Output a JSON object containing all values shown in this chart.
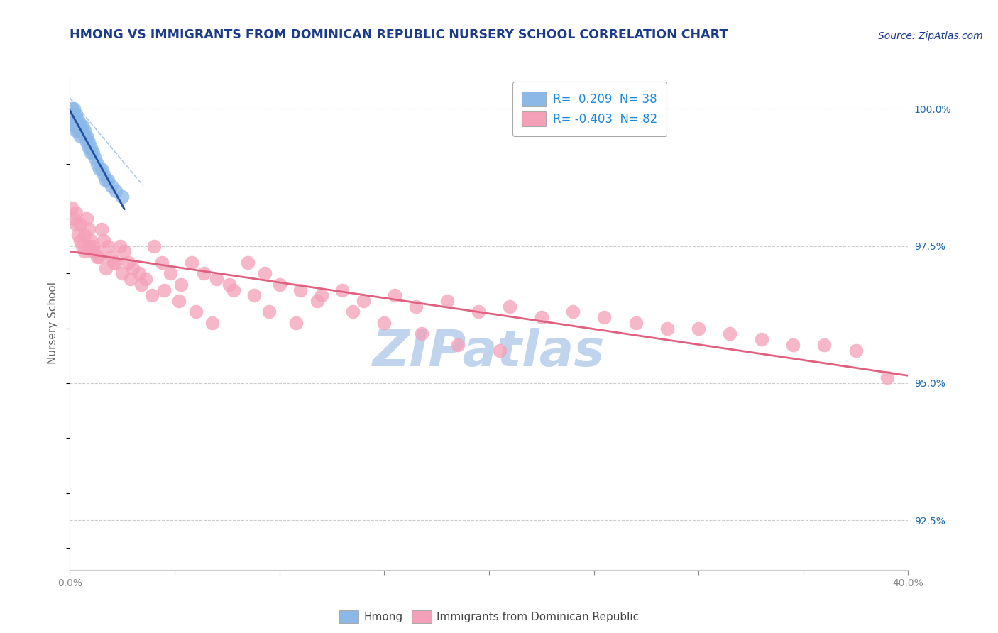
{
  "title": "HMONG VS IMMIGRANTS FROM DOMINICAN REPUBLIC NURSERY SCHOOL CORRELATION CHART",
  "source": "Source: ZipAtlas.com",
  "ylabel": "Nursery School",
  "xmin": 0.0,
  "xmax": 0.4,
  "ymin": 0.916,
  "ymax": 1.006,
  "yticks": [
    0.925,
    0.95,
    0.975,
    1.0
  ],
  "ytick_labels": [
    "92.5%",
    "95.0%",
    "97.5%",
    "100.0%"
  ],
  "xtick_positions": [
    0.0,
    0.4
  ],
  "xtick_labels": [
    "0.0%",
    "40.0%"
  ],
  "hmong_R": 0.209,
  "hmong_N": 38,
  "dr_R": -0.403,
  "dr_N": 82,
  "hmong_color": "#8cb8e8",
  "dr_color": "#f4a0b8",
  "hmong_line_color": "#2050a0",
  "hmong_line_dash_color": "#8ab0d8",
  "dr_line_color": "#e06080",
  "title_color": "#1a3a8a",
  "source_color": "#1a3a8a",
  "axis_label_color": "#666666",
  "tick_color": "#888888",
  "right_tick_color": "#1a6ab0",
  "legend_text_color": "#1a88dd",
  "watermark_color": "#c0d4ee",
  "hmong_x": [
    0.001,
    0.001,
    0.001,
    0.002,
    0.002,
    0.002,
    0.002,
    0.003,
    0.003,
    0.003,
    0.003,
    0.004,
    0.004,
    0.004,
    0.005,
    0.005,
    0.005,
    0.006,
    0.006,
    0.007,
    0.007,
    0.008,
    0.008,
    0.009,
    0.009,
    0.01,
    0.01,
    0.011,
    0.012,
    0.013,
    0.014,
    0.015,
    0.016,
    0.017,
    0.018,
    0.02,
    0.022,
    0.025
  ],
  "hmong_y": [
    1.0,
    0.999,
    0.998,
    1.0,
    0.999,
    0.998,
    0.997,
    0.999,
    0.998,
    0.997,
    0.996,
    0.998,
    0.997,
    0.996,
    0.997,
    0.996,
    0.995,
    0.997,
    0.996,
    0.996,
    0.995,
    0.995,
    0.994,
    0.994,
    0.993,
    0.993,
    0.992,
    0.992,
    0.991,
    0.99,
    0.989,
    0.989,
    0.988,
    0.987,
    0.987,
    0.986,
    0.985,
    0.984
  ],
  "dr_x": [
    0.001,
    0.002,
    0.003,
    0.004,
    0.005,
    0.006,
    0.007,
    0.008,
    0.009,
    0.01,
    0.011,
    0.012,
    0.013,
    0.015,
    0.016,
    0.018,
    0.02,
    0.022,
    0.024,
    0.026,
    0.028,
    0.03,
    0.033,
    0.036,
    0.04,
    0.044,
    0.048,
    0.053,
    0.058,
    0.064,
    0.07,
    0.078,
    0.085,
    0.093,
    0.1,
    0.11,
    0.12,
    0.13,
    0.14,
    0.155,
    0.165,
    0.18,
    0.195,
    0.21,
    0.225,
    0.24,
    0.255,
    0.27,
    0.285,
    0.3,
    0.315,
    0.33,
    0.345,
    0.36,
    0.375,
    0.39,
    0.003,
    0.005,
    0.007,
    0.009,
    0.011,
    0.014,
    0.017,
    0.021,
    0.025,
    0.029,
    0.034,
    0.039,
    0.045,
    0.052,
    0.06,
    0.068,
    0.076,
    0.088,
    0.095,
    0.108,
    0.118,
    0.135,
    0.15,
    0.168,
    0.185,
    0.205
  ],
  "dr_y": [
    0.982,
    0.98,
    0.979,
    0.977,
    0.976,
    0.975,
    0.974,
    0.98,
    0.978,
    0.976,
    0.975,
    0.974,
    0.973,
    0.978,
    0.976,
    0.975,
    0.973,
    0.972,
    0.975,
    0.974,
    0.972,
    0.971,
    0.97,
    0.969,
    0.975,
    0.972,
    0.97,
    0.968,
    0.972,
    0.97,
    0.969,
    0.967,
    0.972,
    0.97,
    0.968,
    0.967,
    0.966,
    0.967,
    0.965,
    0.966,
    0.964,
    0.965,
    0.963,
    0.964,
    0.962,
    0.963,
    0.962,
    0.961,
    0.96,
    0.96,
    0.959,
    0.958,
    0.957,
    0.957,
    0.956,
    0.951,
    0.981,
    0.979,
    0.977,
    0.975,
    0.974,
    0.973,
    0.971,
    0.972,
    0.97,
    0.969,
    0.968,
    0.966,
    0.967,
    0.965,
    0.963,
    0.961,
    0.968,
    0.966,
    0.963,
    0.961,
    0.965,
    0.963,
    0.961,
    0.959,
    0.957,
    0.956
  ],
  "hmong_trendline_x0": 0.0,
  "hmong_trendline_x1": 0.026,
  "dr_trendline_x0": 0.0,
  "dr_trendline_x1": 0.4
}
